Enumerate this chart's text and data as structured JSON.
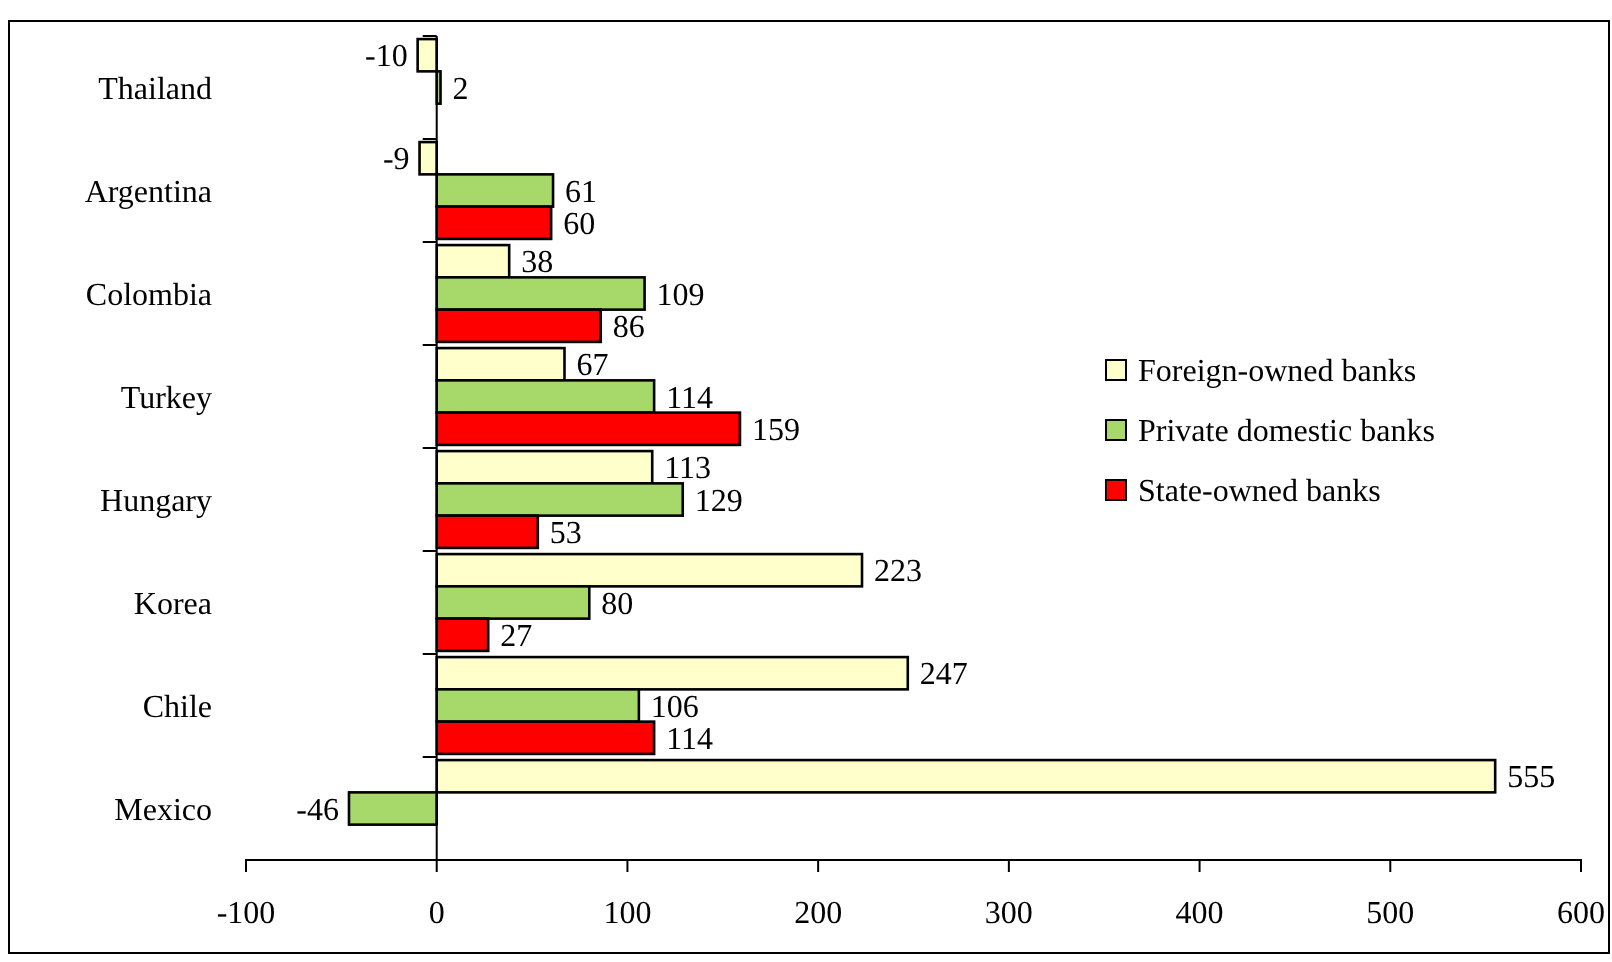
{
  "chart_data": {
    "type": "bar",
    "orientation": "horizontal",
    "categories": [
      "Thailand",
      "Argentina",
      "Colombia",
      "Turkey",
      "Hungary",
      "Korea",
      "Chile",
      "Mexico"
    ],
    "series": [
      {
        "name": "Foreign-owned banks",
        "color": "#ffffcc",
        "values": [
          -10,
          -9,
          38,
          67,
          113,
          223,
          247,
          555
        ]
      },
      {
        "name": "Private domestic banks",
        "color": "#a6d96a",
        "values": [
          2,
          61,
          109,
          114,
          129,
          80,
          106,
          -46
        ]
      },
      {
        "name": "State-owned banks",
        "color": "#ff0000",
        "values": [
          null,
          60,
          86,
          159,
          53,
          27,
          114,
          null
        ]
      }
    ],
    "xlim": [
      -100,
      600
    ],
    "xticks": [
      -100,
      0,
      100,
      200,
      300,
      400,
      500,
      600
    ],
    "data_labels": true,
    "legend": "right"
  }
}
